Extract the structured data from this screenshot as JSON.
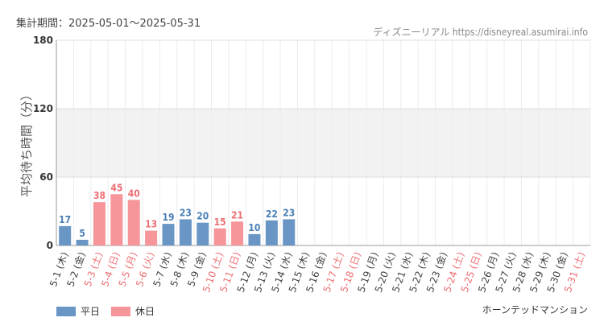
{
  "header": {
    "period": "集計期間：2025-05-01～2025-05-31",
    "source": "ディズニーリアル https://disneyreal.asumirai.info"
  },
  "footer": {
    "attraction": "ホーンテッドマンション"
  },
  "legend": {
    "weekday": "平日",
    "holiday": "休日"
  },
  "colors": {
    "weekday_bar": "#6a96c6",
    "holiday_bar": "#f6959a",
    "weekday_text": "#444444",
    "holiday_text": "#ee6f73",
    "weekday_value": "#4a7fb5",
    "holiday_value": "#ee6f73"
  },
  "chart_data": {
    "type": "bar",
    "ylabel": "平均待ち時間（分）",
    "ylim": [
      0,
      180
    ],
    "yticks": [
      0,
      60,
      120,
      180
    ],
    "grid": true,
    "legend_position": "bottom-left",
    "categories": [
      "5-1 (木)",
      "5-2 (金)",
      "5-3 (土)",
      "5-4 (日)",
      "5-5 (月)",
      "5-6 (火)",
      "5-7 (水)",
      "5-8 (木)",
      "5-9 (金)",
      "5-10 (土)",
      "5-11 (日)",
      "5-12 (月)",
      "5-13 (火)",
      "5-14 (水)",
      "5-15 (木)",
      "5-16 (金)",
      "5-17 (土)",
      "5-18 (日)",
      "5-19 (月)",
      "5-20 (火)",
      "5-21 (水)",
      "5-22 (木)",
      "5-23 (金)",
      "5-24 (土)",
      "5-25 (日)",
      "5-26 (月)",
      "5-27 (火)",
      "5-28 (水)",
      "5-29 (木)",
      "5-30 (金)",
      "5-31 (土)"
    ],
    "day_type": [
      "weekday",
      "weekday",
      "holiday",
      "holiday",
      "holiday",
      "holiday",
      "weekday",
      "weekday",
      "weekday",
      "holiday",
      "holiday",
      "weekday",
      "weekday",
      "weekday",
      "weekday",
      "weekday",
      "holiday",
      "holiday",
      "weekday",
      "weekday",
      "weekday",
      "weekday",
      "weekday",
      "holiday",
      "holiday",
      "weekday",
      "weekday",
      "weekday",
      "weekday",
      "weekday",
      "holiday"
    ],
    "values": [
      17,
      5,
      38,
      45,
      40,
      13,
      19,
      23,
      20,
      15,
      21,
      10,
      22,
      23,
      null,
      null,
      null,
      null,
      null,
      null,
      null,
      null,
      null,
      null,
      null,
      null,
      null,
      null,
      null,
      null,
      null
    ]
  }
}
